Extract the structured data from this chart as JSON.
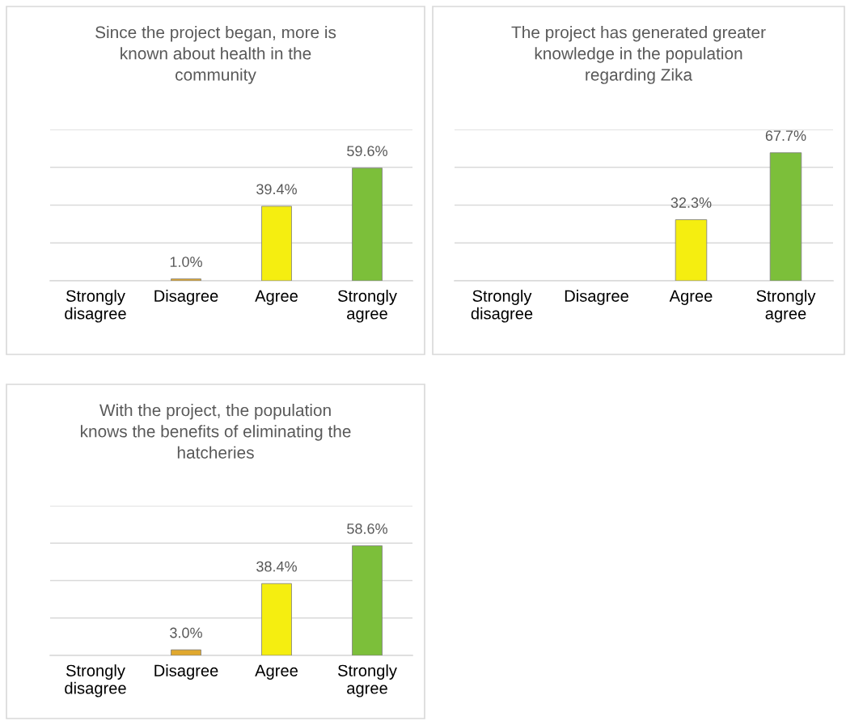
{
  "chart_data": [
    {
      "type": "bar",
      "title": "Since the project began, more is\nknown about health in the\ncommunity",
      "categories": [
        "Strongly\ndisagree",
        "Disagree",
        "Agree",
        "Strongly\nagree"
      ],
      "values": [
        null,
        1.0,
        39.4,
        59.6
      ],
      "colors": [
        "#c9a227",
        "#e0a82e",
        "#f5ee10",
        "#7cbf3a"
      ],
      "value_labels": [
        null,
        "1.0%",
        "39.4%",
        "59.6%"
      ],
      "ylim": [
        0,
        80
      ],
      "yticks": [
        {
          "value": 0,
          "label": null
        },
        {
          "value": 20,
          "label": null
        },
        {
          "value": 40,
          "label": null
        },
        {
          "value": 60,
          "label": null
        },
        {
          "value": 80,
          "label": null
        }
      ],
      "grid": "y",
      "tick_labels": "x"
    },
    {
      "type": "bar",
      "title": "The project has generated greater\nknowledge in the population\nregarding Zika",
      "categories": [
        "Strongly\ndisagree",
        "Disagree",
        "Agree",
        "Strongly\nagree"
      ],
      "values": [
        null,
        null,
        32.3,
        67.7
      ],
      "colors": [
        "#c9a227",
        "#e0a82e",
        "#f5ee10",
        "#7cbf3a"
      ],
      "value_labels": [
        null,
        null,
        "32.3%",
        "67.7%"
      ],
      "ylim": [
        0,
        80
      ],
      "yticks": [
        {
          "value": 0,
          "label": null
        },
        {
          "value": 20,
          "label": null
        },
        {
          "value": 40,
          "label": null
        },
        {
          "value": 60,
          "label": null
        },
        {
          "value": 80,
          "label": null
        }
      ],
      "grid": "y",
      "tick_labels": "x"
    },
    {
      "type": "bar",
      "title": "With the project, the population\nknows the benefits of eliminating the\nhatcheries",
      "categories": [
        "Strongly\ndisagree",
        "Disagree",
        "Agree",
        "Strongly\nagree"
      ],
      "values": [
        null,
        3.0,
        38.4,
        58.6
      ],
      "colors": [
        "#c9a227",
        "#e0a82e",
        "#f5ee10",
        "#7cbf3a"
      ],
      "value_labels": [
        null,
        "3.0%",
        "38.4%",
        "58.6%"
      ],
      "ylim": [
        0,
        80
      ],
      "yticks": [
        {
          "value": 0,
          "label": null
        },
        {
          "value": 20,
          "label": null
        },
        {
          "value": 40,
          "label": null
        },
        {
          "value": 60,
          "label": null
        },
        {
          "value": 80,
          "label": null
        }
      ],
      "grid": "y",
      "tick_labels": "x"
    }
  ]
}
